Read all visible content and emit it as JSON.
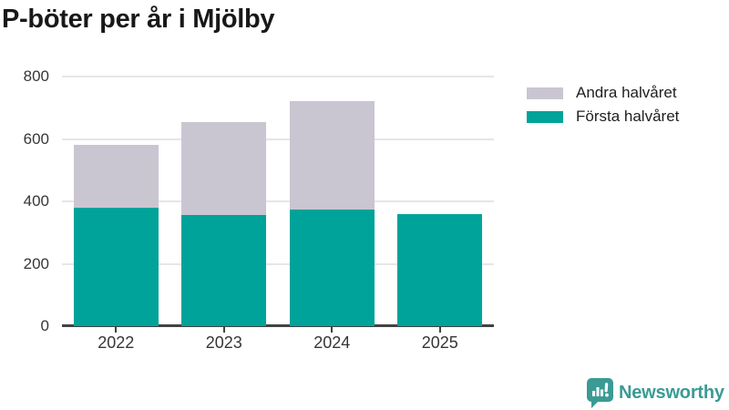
{
  "title": "P-böter per år i Mjölby",
  "chart_data": {
    "type": "bar",
    "stacked": true,
    "title": "P-böter per år i Mjölby",
    "categories": [
      "2022",
      "2023",
      "2024",
      "2025"
    ],
    "series": [
      {
        "name": "Första halvåret",
        "color": "#00a39a",
        "values": [
          380,
          355,
          375,
          360
        ]
      },
      {
        "name": "Andra halvåret",
        "color": "#c9c6d1",
        "values": [
          200,
          300,
          345,
          0
        ]
      }
    ],
    "totals": [
      580,
      655,
      720,
      360
    ],
    "xlabel": "",
    "ylabel": "",
    "ylim": [
      0,
      800
    ],
    "yticks": [
      0,
      200,
      400,
      600,
      800
    ],
    "grid": "horizontal",
    "legend_position": "top-right",
    "legend_order": [
      "Andra halvåret",
      "Första halvåret"
    ]
  },
  "legend": {
    "items": [
      {
        "label": "Andra halvåret",
        "color": "#c9c6d1"
      },
      {
        "label": "Första halvåret",
        "color": "#00a39a"
      }
    ]
  },
  "branding": {
    "logo_text": "Newsworthy",
    "logo_color": "#3a9b94",
    "logo_icon": "bar-chart-speech-bubble-icon"
  },
  "colors": {
    "background": "#ffffff",
    "bar_first_half": "#00a39a",
    "bar_second_half": "#c9c6d1",
    "gridline": "#e6e5e8",
    "axis": "#424242",
    "axis_text": "#363636",
    "title_text": "#181818"
  }
}
